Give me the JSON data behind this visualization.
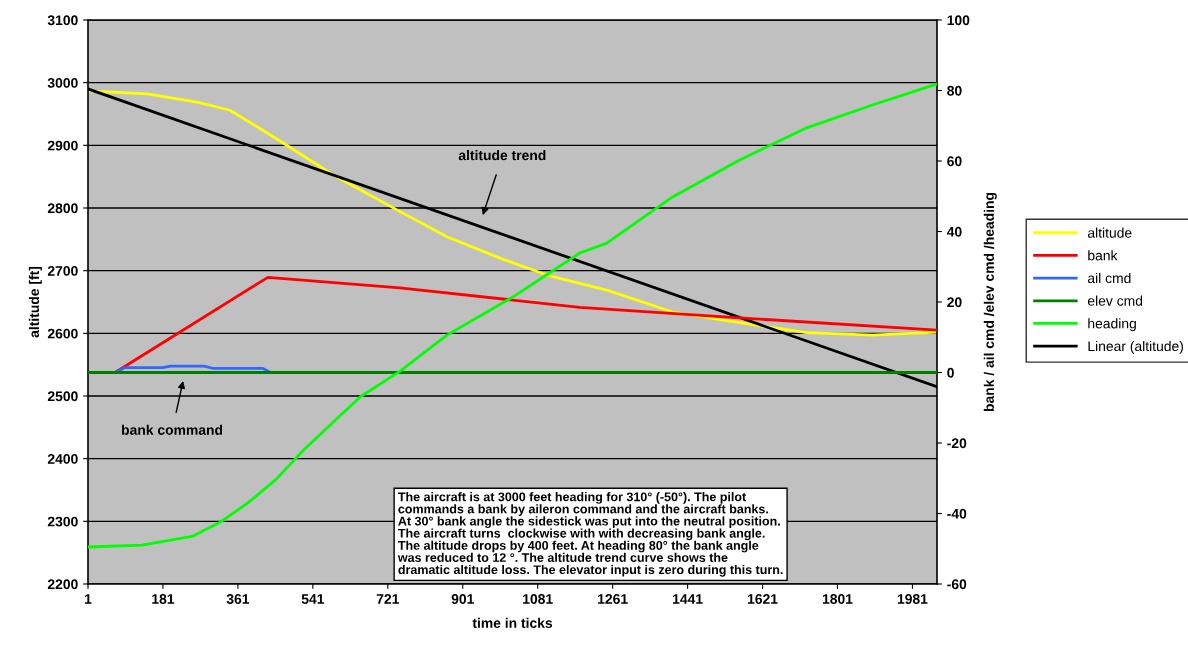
{
  "chart_data": {
    "type": "line",
    "xlabel": "time in ticks",
    "ylabel": "altitude [ft]",
    "y2label": "bank / ail cmd /elev cmd /heading",
    "xlim": [
      1,
      2040
    ],
    "xticks": [
      1,
      181,
      361,
      541,
      721,
      901,
      1081,
      1261,
      1441,
      1621,
      1801,
      1981
    ],
    "ylim": [
      2200,
      3100
    ],
    "yticks": [
      2200,
      2300,
      2400,
      2500,
      2600,
      2700,
      2800,
      2900,
      3000,
      3100
    ],
    "y2lim": [
      -60,
      100
    ],
    "y2ticks": [
      -60,
      -40,
      -20,
      0,
      20,
      40,
      60,
      80,
      100
    ],
    "grid": "y",
    "legend": "right",
    "marker": "none",
    "line_style": "solid",
    "series": [
      {
        "name": "altitude",
        "color": "#ffff00",
        "x": [
          1,
          143,
          263,
          342,
          421,
          486,
          589,
          743,
          863,
          983,
          1103,
          1247,
          1405,
          1566,
          1727,
          1885,
          2039
        ],
        "values": [
          2987,
          2982,
          2969,
          2956,
          2924,
          2897,
          2853,
          2797,
          2754,
          2722,
          2693,
          2669,
          2634,
          2617,
          2601,
          2597,
          2602
        ]
      },
      {
        "name": "bank",
        "color": "#ff0000",
        "axis": "y2",
        "x": [
          1,
          66,
          433,
          750,
          1182,
          1566,
          2039
        ],
        "values": [
          0,
          0,
          27,
          24,
          18.5,
          15.5,
          12
        ]
      },
      {
        "name": "ail cmd",
        "color": "#3366ff",
        "axis": "y2",
        "x": [
          1,
          66,
          90,
          180,
          200,
          280,
          300,
          420,
          440
        ],
        "values": [
          0,
          0,
          1.4,
          1.4,
          1.8,
          1.8,
          1.2,
          1.2,
          0
        ]
      },
      {
        "name": "elev cmd",
        "color": "#008000",
        "axis": "y2",
        "x": [
          1,
          2039
        ],
        "values": [
          0,
          0
        ]
      },
      {
        "name": "heading",
        "color": "#00ff00",
        "axis": "y2",
        "x": [
          1,
          131,
          251,
          318,
          385,
          452,
          519,
          589,
          656,
          750,
          863,
          1021,
          1182,
          1247,
          1405,
          1566,
          1727,
          1885,
          2039
        ],
        "values": [
          -49.5,
          -49,
          -46.5,
          -42.5,
          -37,
          -30.4,
          -22,
          -14.2,
          -6.8,
          0.3,
          10.6,
          21.4,
          33.9,
          36.7,
          49.8,
          60.3,
          69.4,
          75.9,
          81.8
        ]
      },
      {
        "name": "Linear (altitude)",
        "color": "#000000",
        "x": [
          1,
          2039
        ],
        "values": [
          2990,
          2515
        ]
      }
    ],
    "annotations": [
      "altitude trend",
      "bank command",
      "The aircraft is at 3000 feet heading for 310° (-50°). The pilot\ncommands a bank by aileron command and the aircraft banks.\nAt 30° bank angle the sidestick was put into the neutral position.\nThe aircraft turns  clockwise with with decreasing bank angle.\nThe altitude drops by 400 feet. At heading 80° the bank angle\nwas reduced to 12 °. The altitude trend curve shows the\ndramatic altitude loss. The elevator input is zero during this turn."
    ]
  }
}
